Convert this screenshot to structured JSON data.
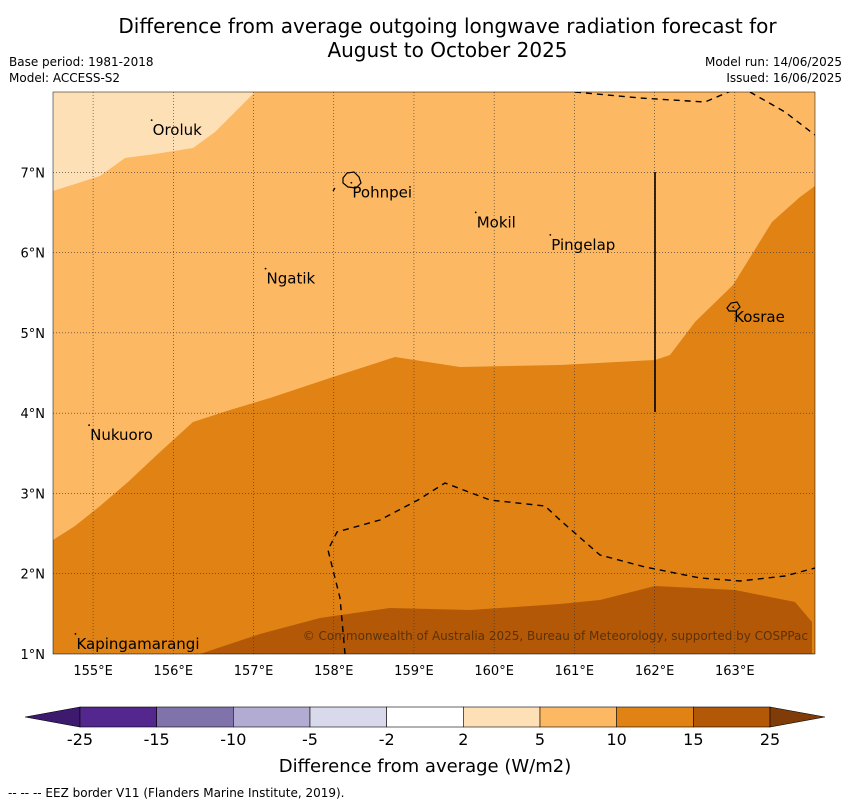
{
  "title_line1": "Difference from average outgoing longwave radiation forecast for",
  "title_line2": "August to October 2025",
  "base_period": "Base period: 1981-2018",
  "model": "Model: ACCESS-S2",
  "model_run": "Model run: 14/06/2025",
  "issued": "Issued: 16/06/2025",
  "copyright": "© Commonwealth of Australia 2025, Bureau of Meteorology, supported by COSPPac",
  "footnote": "--  --  -- EEZ border V11 (Flanders Marine Institute, 2019).",
  "map": {
    "lon_range": [
      154.5,
      164.0
    ],
    "lat_range": [
      1.0,
      8.0
    ],
    "lon_ticks": [
      "155°E",
      "156°E",
      "157°E",
      "158°E",
      "159°E",
      "160°E",
      "161°E",
      "162°E",
      "163°E"
    ],
    "lat_ticks": [
      "1°N",
      "2°N",
      "3°N",
      "4°N",
      "5°N",
      "6°N",
      "7°N"
    ],
    "places": [
      {
        "name": "Oroluk",
        "lon": 155.73,
        "lat": 7.65
      },
      {
        "name": "Pohnpei",
        "lon": 158.22,
        "lat": 6.87
      },
      {
        "name": "Mokil",
        "lon": 159.77,
        "lat": 6.5
      },
      {
        "name": "Pingelap",
        "lon": 160.7,
        "lat": 6.22
      },
      {
        "name": "Ngatik",
        "lon": 157.15,
        "lat": 5.8
      },
      {
        "name": "Kosrae",
        "lon": 162.98,
        "lat": 5.32
      },
      {
        "name": "Nukuoro",
        "lon": 154.95,
        "lat": 3.85
      },
      {
        "name": "Kapingamarangi",
        "lon": 154.78,
        "lat": 1.25
      }
    ]
  },
  "colorbar": {
    "label": "Difference from average (W/m2)",
    "ticks": [
      "-25",
      "-15",
      "-10",
      "-5",
      "-2",
      "2",
      "5",
      "10",
      "15",
      "25"
    ],
    "colors": [
      "#3d1a6e",
      "#54278f",
      "#8073ac",
      "#b2abd2",
      "#d8daeb",
      "#ffffff",
      "#fee0b6",
      "#fdb863",
      "#e08214",
      "#b35806",
      "#7f3b08"
    ]
  },
  "legend_colors": {
    "band_2_5": "#fee0b6",
    "band_5_10": "#fdb863",
    "band_10_15": "#e08214",
    "band_15_25": "#b35806"
  }
}
